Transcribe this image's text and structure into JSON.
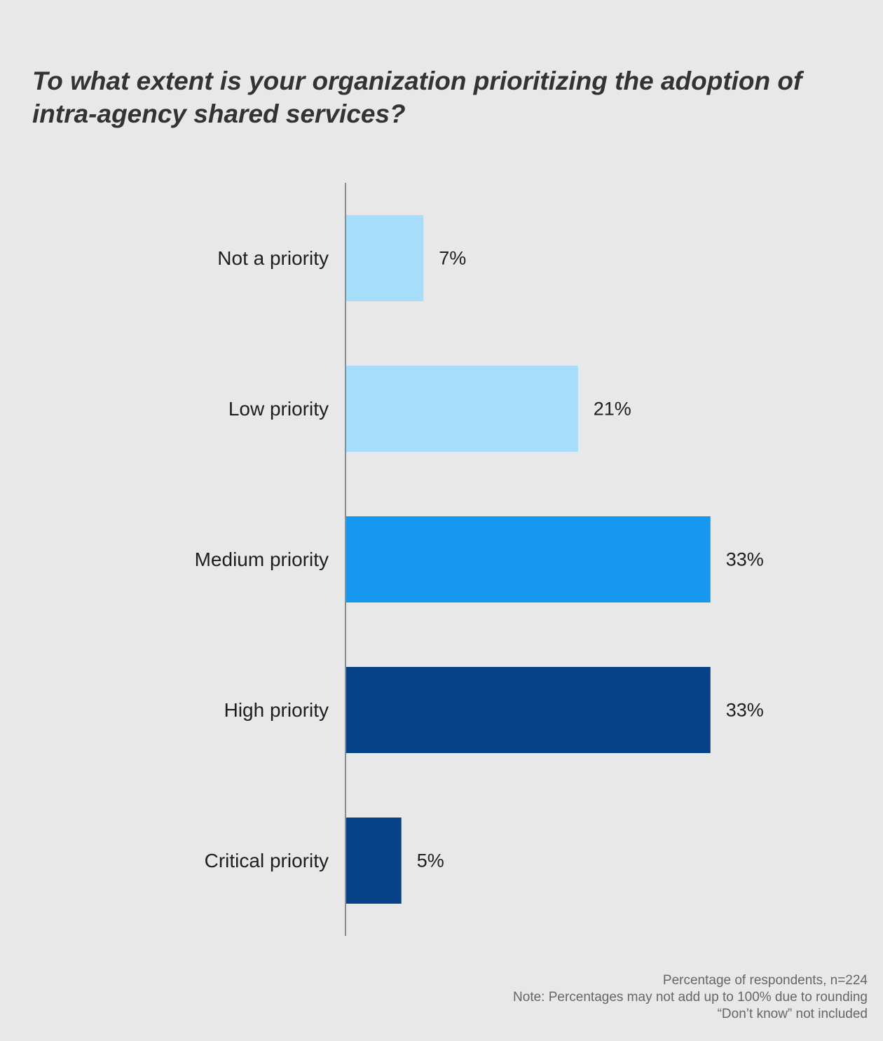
{
  "chart_data": {
    "type": "bar",
    "orientation": "horizontal",
    "title": "To what extent is your organization prioritizing the adoption of intra-agency shared services?",
    "categories": [
      "Not a priority",
      "Low priority",
      "Medium priority",
      "High priority",
      "Critical priority"
    ],
    "values": [
      7,
      21,
      33,
      33,
      5
    ],
    "value_labels": [
      "7%",
      "21%",
      "33%",
      "33%",
      "5%"
    ],
    "bar_colors": [
      "#a6ddfb",
      "#a6ddfb",
      "#1697f0",
      "#074187",
      "#074187"
    ],
    "axis_color": "#8c8c8c",
    "xlim": [
      0,
      35
    ],
    "unit": "%",
    "grid": false,
    "legend": false
  },
  "footnotes": {
    "line1": "Percentage of respondents, n=224",
    "line2": "Note: Percentages may not add up to 100% due to rounding",
    "line3": "“Don’t know” not included"
  }
}
